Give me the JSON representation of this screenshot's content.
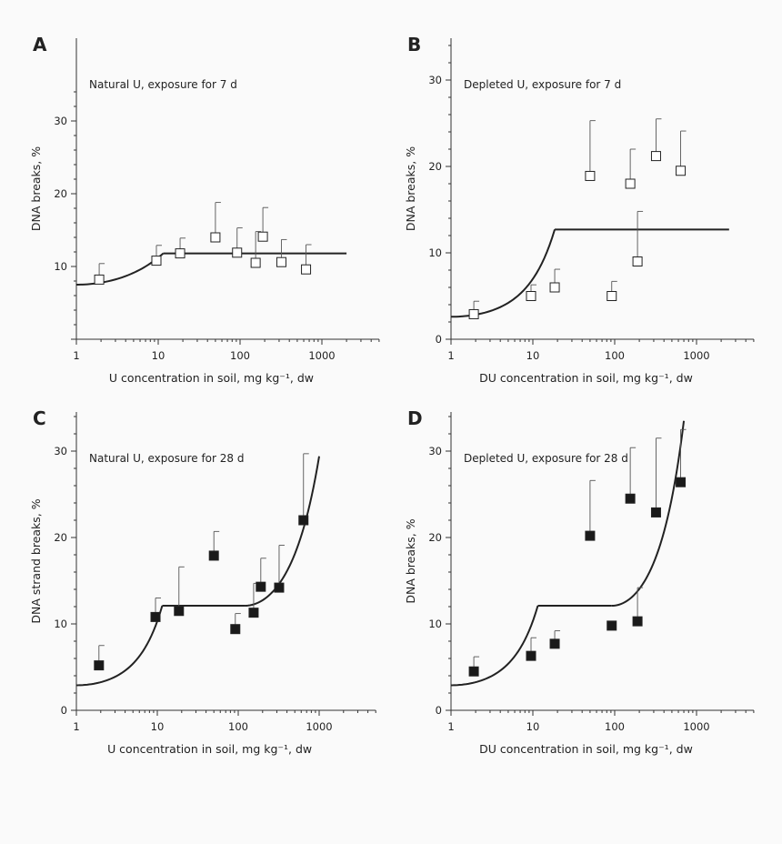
{
  "figure": {
    "background": "#fafafa",
    "ink": "#222222"
  },
  "chart_data": [
    {
      "panel": "A",
      "type": "scatter",
      "note": "Natural U, exposure for 7 d",
      "xlabel": "U concentration in soil, mg kg⁻¹, dw",
      "ylabel": "DNA breaks, %",
      "xscale": "log",
      "xlim": [
        1,
        5000
      ],
      "ylim": [
        0,
        35
      ],
      "xticks": [
        1,
        10,
        100,
        1000
      ],
      "xtick_labels": [
        "1",
        "10",
        "100",
        "1000"
      ],
      "yticks": [
        10,
        20,
        30
      ],
      "ytick_labels": [
        "10",
        "20",
        "30"
      ],
      "marker": "open-square",
      "x": [
        1.9,
        9.5,
        18.5,
        50,
        92,
        155,
        190,
        320,
        640
      ],
      "y": [
        8.2,
        10.8,
        11.8,
        14.0,
        11.9,
        10.5,
        14.1,
        10.6,
        9.6
      ],
      "yerr_upper": [
        10.4,
        12.9,
        13.9,
        18.8,
        15.3,
        14.8,
        18.1,
        13.7,
        13.0
      ],
      "fit": [
        {
          "shape": "exp",
          "x": [
            1,
            11.5
          ],
          "y": [
            7.5,
            11.8
          ]
        },
        {
          "shape": "flat",
          "x": [
            11.5,
            2000
          ],
          "y": [
            11.8,
            11.8
          ]
        }
      ]
    },
    {
      "panel": "B",
      "type": "scatter",
      "note": "Depleted U, exposure for 7 d",
      "xlabel": "DU concentration in soil, mg kg⁻¹, dw",
      "ylabel": "DNA breaks, %",
      "xscale": "log",
      "xlim": [
        1,
        5000
      ],
      "ylim": [
        0,
        35
      ],
      "xticks": [
        1,
        10,
        100,
        1000
      ],
      "xtick_labels": [
        "1",
        "10",
        "100",
        "1000"
      ],
      "yticks": [
        0,
        10,
        20,
        30
      ],
      "ytick_labels": [
        "0",
        "10",
        "20",
        "30"
      ],
      "marker": "open-square",
      "x": [
        1.9,
        9.5,
        18.5,
        50,
        92,
        155,
        190,
        320,
        640
      ],
      "y": [
        2.9,
        5.0,
        6.0,
        18.9,
        5.0,
        18.0,
        9.0,
        21.2,
        19.5
      ],
      "yerr_upper": [
        4.4,
        6.3,
        8.1,
        25.3,
        6.7,
        22.0,
        14.8,
        25.5,
        24.1
      ],
      "fit": [
        {
          "shape": "exp",
          "x": [
            1,
            18.5
          ],
          "y": [
            2.6,
            12.7
          ]
        },
        {
          "shape": "flat",
          "x": [
            18.5,
            2500
          ],
          "y": [
            12.7,
            12.7
          ]
        }
      ]
    },
    {
      "panel": "C",
      "type": "scatter",
      "note": "Natural U, exposure for 28 d",
      "xlabel": "U concentration in soil, mg kg⁻¹, dw",
      "ylabel": "DNA strand breaks, %",
      "xscale": "log",
      "xlim": [
        1,
        5000
      ],
      "ylim": [
        0,
        35
      ],
      "xticks": [
        1,
        10,
        100,
        1000
      ],
      "xtick_labels": [
        "1",
        "10",
        "100",
        "1000"
      ],
      "yticks": [
        0,
        10,
        20,
        30
      ],
      "ytick_labels": [
        "0",
        "10",
        "20",
        "30"
      ],
      "marker": "filled-square",
      "x": [
        1.9,
        9.5,
        18.5,
        50,
        92,
        155,
        190,
        320,
        640
      ],
      "y": [
        5.2,
        10.8,
        11.5,
        17.9,
        9.4,
        11.3,
        14.3,
        14.2,
        22.0
      ],
      "yerr_upper": [
        7.5,
        13.0,
        16.6,
        20.7,
        11.2,
        14.7,
        17.6,
        19.1,
        29.7
      ],
      "fit": [
        {
          "shape": "exp",
          "x": [
            1,
            11.5
          ],
          "y": [
            2.9,
            12.1
          ]
        },
        {
          "shape": "flat",
          "x": [
            11.5,
            120
          ],
          "y": [
            12.1,
            12.1
          ]
        },
        {
          "shape": "exp",
          "x": [
            120,
            1000
          ],
          "y": [
            12.1,
            29.4
          ]
        }
      ]
    },
    {
      "panel": "D",
      "type": "scatter",
      "note": "Depleted U, exposure for 28 d",
      "xlabel": "DU concentration in soil, mg kg⁻¹, dw",
      "ylabel": "DNA breaks, %",
      "xscale": "log",
      "xlim": [
        1,
        5000
      ],
      "ylim": [
        0,
        35
      ],
      "xticks": [
        1,
        10,
        100,
        1000
      ],
      "xtick_labels": [
        "1",
        "10",
        "100",
        "1000"
      ],
      "yticks": [
        0,
        10,
        20,
        30
      ],
      "ytick_labels": [
        "0",
        "10",
        "20",
        "30"
      ],
      "marker": "filled-square",
      "x": [
        1.9,
        9.5,
        18.5,
        50,
        92,
        155,
        190,
        320,
        640
      ],
      "y": [
        4.5,
        6.3,
        7.7,
        20.2,
        9.8,
        24.5,
        10.3,
        22.9,
        26.4
      ],
      "yerr_upper": [
        6.2,
        8.4,
        9.2,
        26.6,
        9.8,
        30.4,
        14.2,
        31.5,
        32.5
      ],
      "fit": [
        {
          "shape": "exp",
          "x": [
            1,
            11.5
          ],
          "y": [
            2.9,
            12.1
          ]
        },
        {
          "shape": "flat",
          "x": [
            11.5,
            92
          ],
          "y": [
            12.1,
            12.1
          ]
        },
        {
          "shape": "exp",
          "x": [
            92,
            700
          ],
          "y": [
            12.1,
            33.5
          ]
        }
      ]
    }
  ]
}
